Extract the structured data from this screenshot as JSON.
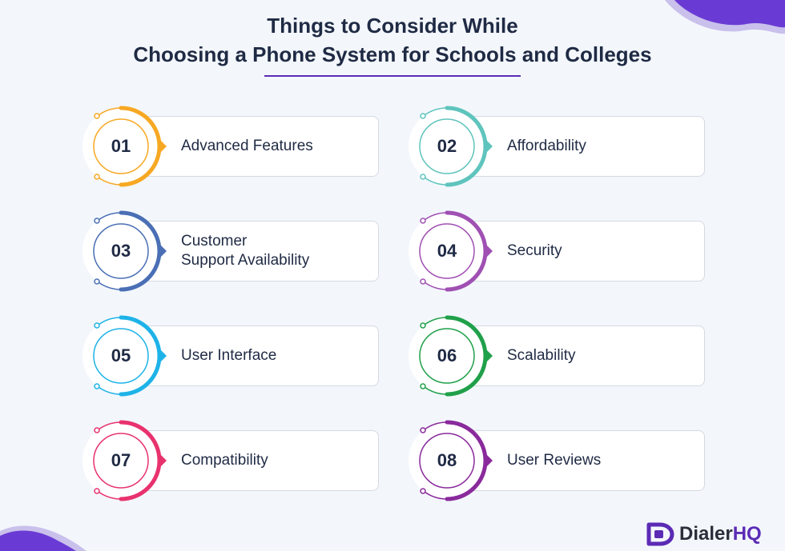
{
  "title": {
    "line1": "Things to Consider While",
    "line2": "Choosing a Phone System for Schools and Colleges"
  },
  "items": [
    {
      "number": "01",
      "label": "Advanced Features",
      "color": "#f7a823"
    },
    {
      "number": "02",
      "label": "Affordability",
      "color": "#5fc4bd"
    },
    {
      "number": "03",
      "label": "Customer\nSupport Availability",
      "color": "#4a6fb5"
    },
    {
      "number": "04",
      "label": "Security",
      "color": "#a050b3"
    },
    {
      "number": "05",
      "label": "User Interface",
      "color": "#1eb3e8"
    },
    {
      "number": "06",
      "label": "Scalability",
      "color": "#20a04a"
    },
    {
      "number": "07",
      "label": "Compatibility",
      "color": "#e8326e"
    },
    {
      "number": "08",
      "label": "User Reviews",
      "color": "#8a2a9c"
    }
  ],
  "brand": {
    "name_part1": "Dialer",
    "name_part2": "HQ",
    "accent": "#5b2bb5"
  }
}
